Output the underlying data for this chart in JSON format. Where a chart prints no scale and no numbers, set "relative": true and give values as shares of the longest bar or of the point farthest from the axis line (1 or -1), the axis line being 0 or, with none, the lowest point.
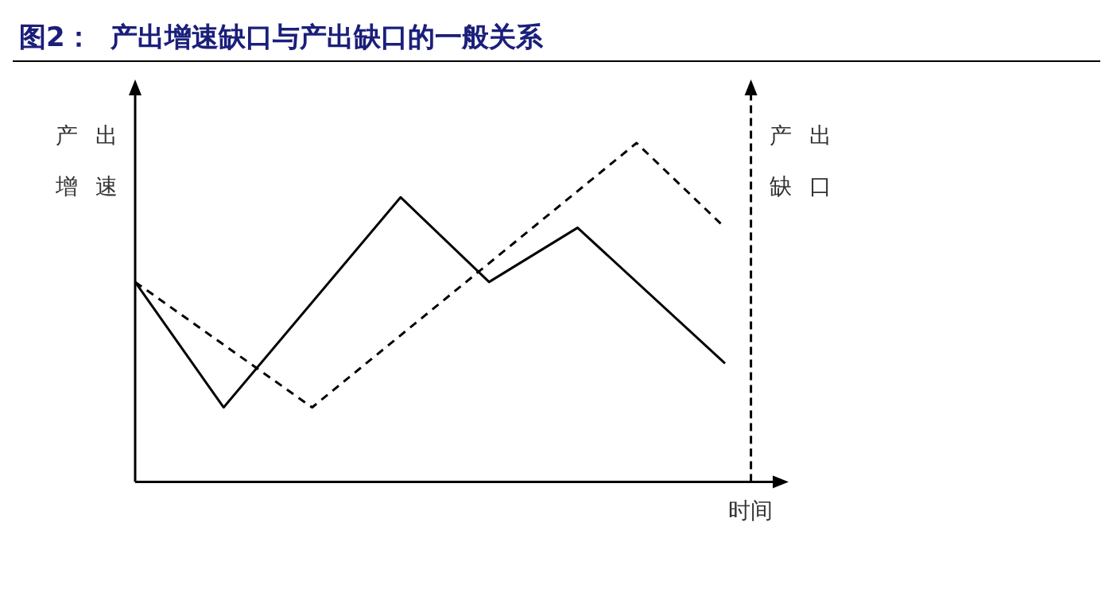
{
  "chart_data": {
    "type": "line",
    "title": "图2：  产出增速缺口与产出缺口的一般关系",
    "xlabel": "时间",
    "ylabel": "产出增速",
    "y2label": "产出缺口",
    "relative": true,
    "categories": [
      null,
      null,
      null,
      null,
      null,
      null,
      null,
      null,
      null,
      null,
      null,
      null,
      null,
      null,
      null,
      null,
      null,
      null,
      null,
      null,
      null
    ],
    "series": [
      {
        "color": "#000000",
        "line_style": "solid",
        "values": [
          0.59,
          null,
          null,
          0.22,
          null,
          null,
          null,
          null,
          null,
          0.84,
          null,
          null,
          0.59,
          null,
          null,
          0.75,
          null,
          null,
          null,
          null,
          0.35
        ]
      },
      {
        "color": "#000000",
        "line_style": "dashed",
        "values": [
          0.59,
          null,
          null,
          null,
          null,
          null,
          0.22,
          null,
          null,
          null,
          null,
          null,
          null,
          null,
          null,
          null,
          null,
          1,
          null,
          null,
          0.75
        ]
      }
    ]
  }
}
